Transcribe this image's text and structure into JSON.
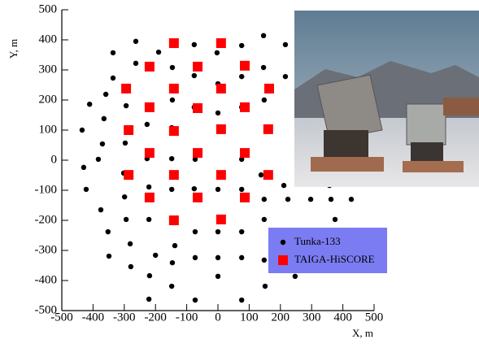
{
  "chart_data": {
    "type": "scatter",
    "xlabel": "X, m",
    "ylabel": "Y, m",
    "xlim": [
      -500,
      500
    ],
    "ylim": [
      -500,
      500
    ],
    "xticks": [
      -500,
      -400,
      -300,
      -200,
      -100,
      0,
      100,
      200,
      300,
      400,
      500
    ],
    "yticks": [
      -500,
      -400,
      -300,
      -200,
      -100,
      0,
      100,
      200,
      300,
      400,
      500
    ],
    "legend": "lower-right",
    "series": [
      {
        "name": "Tunka-133",
        "color": "#000000",
        "marker": "circle",
        "x": [
          -263,
          -336,
          -263,
          -336,
          -411,
          -359,
          -435,
          -365,
          -294,
          -227,
          -190,
          -146,
          -146,
          -148,
          -76,
          -76,
          -76,
          -3,
          0,
          0,
          76,
          76,
          76,
          146,
          146,
          148,
          216,
          216,
          -297,
          -370,
          -430,
          -383,
          -422,
          -302,
          -227,
          -299,
          -375,
          -221,
          -148,
          -73,
          -148,
          -76,
          0,
          76,
          76,
          -221,
          -294,
          -352,
          -281,
          -349,
          -279,
          -200,
          -138,
          -73,
          0,
          76,
          148,
          148,
          148,
          224,
          297,
          362,
          375,
          -146,
          -73,
          0,
          76,
          -219,
          -148,
          -73,
          76,
          0,
          -221,
          151,
          247,
          357,
          427,
          427,
          138,
          211
        ],
        "values": [
          395,
          357,
          322,
          273,
          186,
          219,
          100,
          138,
          181,
          119,
          359,
          308,
          200,
          108,
          384,
          281,
          176,
          357,
          254,
          157,
          381,
          278,
          176,
          414,
          308,
          200,
          384,
          278,
          57,
          54,
          -24,
          3,
          -97,
          -43,
          5,
          -122,
          -165,
          -89,
          5,
          3,
          -97,
          -95,
          -97,
          -97,
          3,
          -197,
          -197,
          -238,
          -278,
          -319,
          -354,
          -316,
          -284,
          -238,
          -238,
          -238,
          -130,
          -197,
          -332,
          -130,
          -130,
          -130,
          -197,
          -341,
          -324,
          -324,
          -324,
          -384,
          -419,
          -465,
          -465,
          -386,
          -462,
          -419,
          -386,
          -84,
          -130,
          -24,
          -49,
          -84
        ]
      },
      {
        "name": "TAIGA-HiSCORE",
        "color": "#ff0000",
        "marker": "square",
        "x": [
          -141,
          10,
          -219,
          -65,
          86,
          -294,
          -141,
          10,
          164,
          -219,
          -65,
          86,
          -286,
          -141,
          10,
          161,
          -219,
          -65,
          86,
          -286,
          -141,
          10,
          161,
          -219,
          -65,
          86,
          -141,
          10
        ],
        "values": [
          389,
          389,
          311,
          311,
          314,
          238,
          238,
          238,
          238,
          176,
          173,
          176,
          100,
          97,
          103,
          103,
          24,
          24,
          24,
          -49,
          -49,
          -49,
          -49,
          -124,
          -124,
          -124,
          -200,
          -197
        ]
      }
    ]
  }
}
